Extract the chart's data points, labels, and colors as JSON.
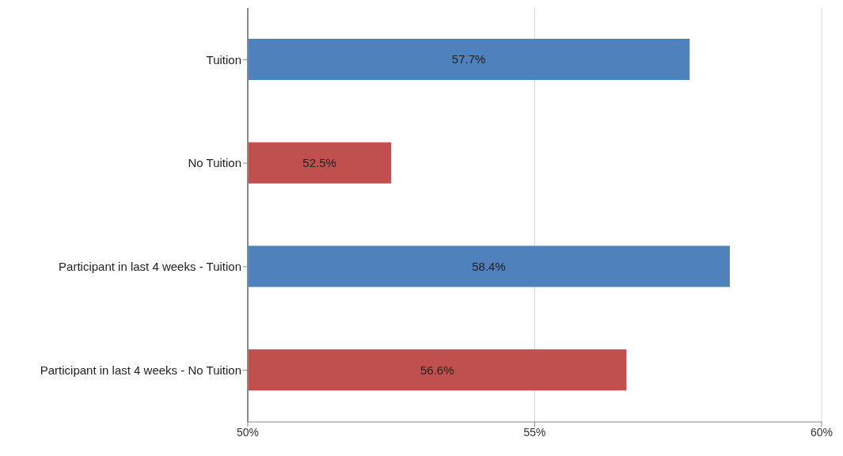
{
  "chart_data": {
    "type": "bar",
    "orientation": "horizontal",
    "categories": [
      "Tuition",
      "No Tuition",
      "Participant in last 4 weeks - Tuition",
      "Participant in last 4 weeks - No Tuition"
    ],
    "values": [
      57.7,
      52.5,
      58.4,
      56.6
    ],
    "colors": [
      "#4f81bd",
      "#c0504d",
      "#4f81bd",
      "#c0504d"
    ],
    "value_labels": [
      "57.7%",
      "52.5%",
      "58.4%",
      "56.6%"
    ],
    "xlim": [
      50,
      60
    ],
    "xticks": [
      {
        "value": 50,
        "label": "50%"
      },
      {
        "value": 55,
        "label": "55%"
      },
      {
        "value": 60,
        "label": "60%"
      }
    ],
    "grid": "x",
    "legend": false
  }
}
